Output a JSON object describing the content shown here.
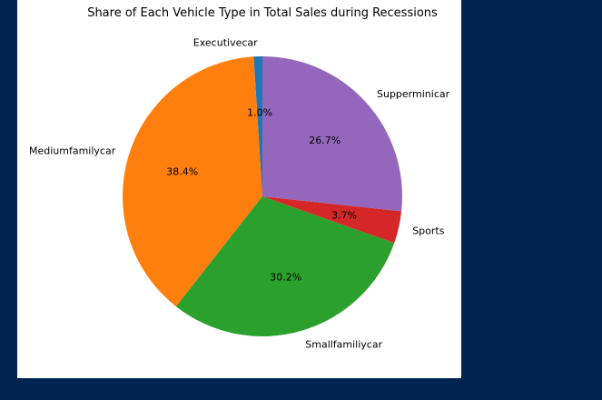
{
  "chart_data": {
    "type": "pie",
    "title": "Share of Each Vehicle Type in Total Sales during Recessions",
    "slices": [
      {
        "label": "Executivecar",
        "value": 1.0,
        "pct_label": "1.0%",
        "color": "#1f77b4"
      },
      {
        "label": "Mediumfamilycar",
        "value": 38.4,
        "pct_label": "38.4%",
        "color": "#ff7f0e"
      },
      {
        "label": "Smallfamiliycar",
        "value": 30.2,
        "pct_label": "30.2%",
        "color": "#2ca02c"
      },
      {
        "label": "Sports",
        "value": 3.7,
        "pct_label": "3.7%",
        "color": "#d62728"
      },
      {
        "label": "Supperminicar",
        "value": 26.7,
        "pct_label": "26.7%",
        "color": "#9467bd"
      }
    ],
    "start_angle_deg": 90,
    "direction": "counterclockwise",
    "legend": "none"
  },
  "colors": {
    "page_background": "#022452",
    "figure_background": "#ffffff"
  }
}
